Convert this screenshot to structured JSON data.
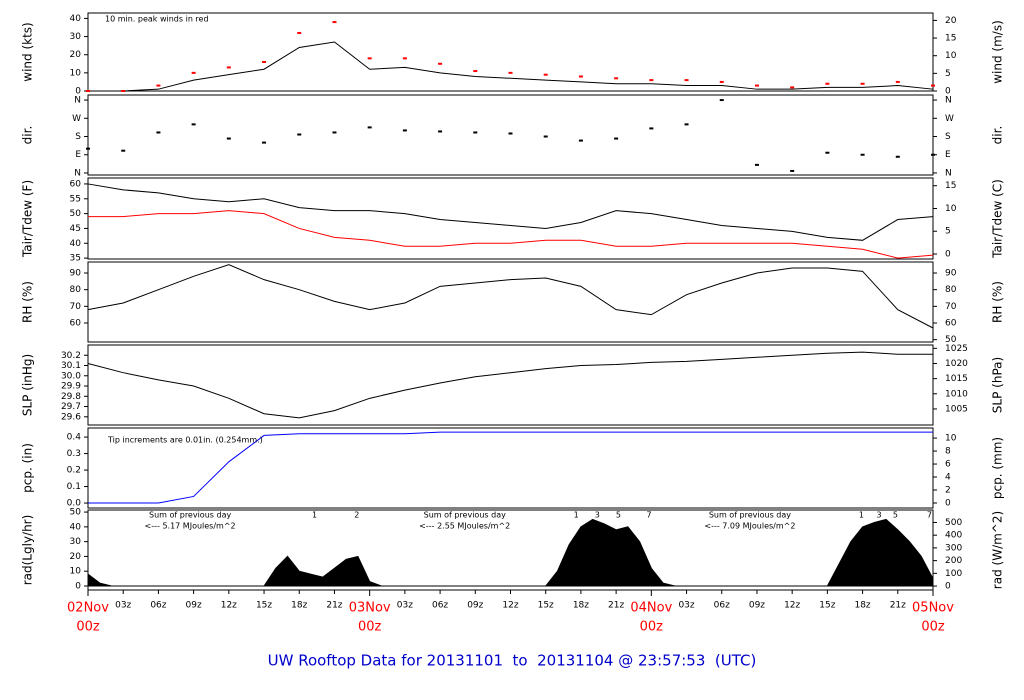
{
  "title": "UW Rooftop Data for 20131101  to  20131104 @ 23:57:53  (UTC)",
  "chart_data": [
    {
      "type": "line",
      "ylabel": "wind (kts)",
      "y2label": "wind (m/s)",
      "annotation": "10 min. peak winds in red",
      "xlim": [
        0,
        72
      ],
      "ylim": [
        0,
        43
      ],
      "yticks": [
        0,
        10,
        20,
        30,
        40
      ],
      "y2lim": [
        0,
        22.1
      ],
      "y2ticks": [
        0,
        5,
        10,
        15,
        20
      ],
      "x": [
        0,
        3,
        6,
        9,
        12,
        15,
        18,
        21,
        24,
        27,
        30,
        33,
        36,
        39,
        42,
        45,
        48,
        51,
        54,
        57,
        60,
        63,
        66,
        69,
        72
      ],
      "series": [
        {
          "color": "#000000",
          "style": "line",
          "values": [
            0,
            0,
            1,
            6,
            9,
            12,
            24,
            27,
            12,
            13,
            10,
            8,
            7,
            6,
            5,
            4,
            4,
            3,
            3,
            1,
            1,
            2,
            2,
            3,
            1
          ]
        },
        {
          "color": "#ff0000",
          "style": "points",
          "values": [
            0,
            0,
            3,
            10,
            13,
            16,
            32,
            38,
            18,
            18,
            15,
            11,
            10,
            9,
            8,
            7,
            6,
            6,
            5,
            3,
            2,
            4,
            4,
            5,
            3
          ]
        }
      ]
    },
    {
      "type": "scatter",
      "ylabel": "dir.",
      "y2label": "dir.",
      "xlim": [
        0,
        72
      ],
      "ylim": [
        -10,
        385
      ],
      "yticks": [
        {
          "value": 0,
          "label": "N"
        },
        {
          "value": 90,
          "label": "E"
        },
        {
          "value": 180,
          "label": "S"
        },
        {
          "value": 270,
          "label": "W"
        },
        {
          "value": 360,
          "label": "N"
        }
      ],
      "y2lim": [
        -10,
        385
      ],
      "y2ticks": [
        {
          "value": 0,
          "label": "N"
        },
        {
          "value": 90,
          "label": "E"
        },
        {
          "value": 180,
          "label": "S"
        },
        {
          "value": 270,
          "label": "W"
        },
        {
          "value": 360,
          "label": "N"
        }
      ],
      "x": [
        0,
        3,
        6,
        9,
        12,
        15,
        18,
        21,
        24,
        27,
        30,
        33,
        36,
        39,
        42,
        45,
        48,
        51,
        54,
        57,
        60,
        63,
        66,
        69,
        72
      ],
      "series": [
        {
          "color": "#000000",
          "style": "points",
          "values": [
            120,
            110,
            200,
            240,
            170,
            150,
            190,
            200,
            225,
            210,
            205,
            200,
            195,
            180,
            160,
            170,
            220,
            240,
            360,
            40,
            10,
            100,
            90,
            80,
            90
          ]
        }
      ]
    },
    {
      "type": "line",
      "ylabel": "Tair/Tdew (F)",
      "y2label": "Tair/Tdew (C)",
      "xlim": [
        0,
        72
      ],
      "ylim": [
        34.7,
        62
      ],
      "yticks": [
        35,
        40,
        45,
        50,
        55,
        60
      ],
      "y2lim": [
        -1.1,
        16.7
      ],
      "y2ticks": [
        0,
        5,
        10,
        15
      ],
      "x": [
        0,
        3,
        6,
        9,
        12,
        15,
        18,
        21,
        24,
        27,
        30,
        33,
        36,
        39,
        42,
        45,
        48,
        51,
        54,
        57,
        60,
        63,
        66,
        69,
        72
      ],
      "series": [
        {
          "color": "#000000",
          "style": "line",
          "values": [
            60,
            58,
            57,
            55,
            54,
            55,
            52,
            51,
            51,
            50,
            48,
            47,
            46,
            45,
            47,
            51,
            50,
            48,
            46,
            45,
            44,
            42,
            41,
            48,
            49
          ]
        },
        {
          "color": "#ff0000",
          "style": "line",
          "values": [
            49,
            49,
            50,
            50,
            51,
            50,
            45,
            42,
            41,
            39,
            39,
            40,
            40,
            41,
            41,
            39,
            39,
            40,
            40,
            40,
            40,
            39,
            38,
            35,
            36
          ]
        }
      ]
    },
    {
      "type": "line",
      "ylabel": "RH (%)",
      "y2label": "RH (%)",
      "xlim": [
        0,
        72
      ],
      "ylim": [
        48.6,
        96.6
      ],
      "yticks": [
        60,
        70,
        80,
        90
      ],
      "y2lim": [
        48.6,
        96.6
      ],
      "y2ticks": [
        50,
        60,
        70,
        80,
        90
      ],
      "x": [
        0,
        3,
        6,
        9,
        12,
        15,
        18,
        21,
        24,
        27,
        30,
        33,
        36,
        39,
        42,
        45,
        48,
        51,
        54,
        57,
        60,
        63,
        66,
        69,
        72
      ],
      "series": [
        {
          "color": "#000000",
          "style": "line",
          "values": [
            68,
            72,
            80,
            88,
            95,
            86,
            80,
            73,
            68,
            72,
            82,
            84,
            86,
            87,
            82,
            68,
            65,
            77,
            84,
            90,
            93,
            93,
            91,
            68,
            57
          ]
        }
      ]
    },
    {
      "type": "line",
      "ylabel": "SLP (inHg)",
      "y2label": "SLP (hPa)",
      "xlim": [
        0,
        72
      ],
      "ylim": [
        29.52,
        30.3
      ],
      "yticks": [
        29.6,
        29.7,
        29.8,
        29.9,
        {
          "value": 30,
          "label": "30.0"
        },
        30.1,
        30.2
      ],
      "y2lim": [
        999.7,
        1026.1
      ],
      "y2ticks": [
        1005,
        1010,
        1015,
        1020,
        1025
      ],
      "x": [
        0,
        3,
        6,
        9,
        12,
        15,
        18,
        21,
        24,
        27,
        30,
        33,
        36,
        39,
        42,
        45,
        48,
        51,
        54,
        57,
        60,
        63,
        66,
        69,
        72
      ],
      "series": [
        {
          "color": "#000000",
          "style": "line",
          "values": [
            30.12,
            30.03,
            29.96,
            29.9,
            29.78,
            29.63,
            29.59,
            29.66,
            29.78,
            29.86,
            29.93,
            29.99,
            30.03,
            30.07,
            30.1,
            30.11,
            30.13,
            30.14,
            30.16,
            30.18,
            30.2,
            30.22,
            30.23,
            30.21,
            30.21
          ]
        }
      ]
    },
    {
      "type": "line",
      "ylabel": "pcp. (in)",
      "y2label": "pcp. (mm)",
      "annotation": "Tip increments are 0.01in. (0.254mm.)",
      "xlim": [
        0,
        72
      ],
      "ylim": [
        -0.03,
        0.455
      ],
      "yticks": [
        {
          "value": 0,
          "label": "0.0"
        },
        0.1,
        0.2,
        0.3,
        0.4
      ],
      "y2lim": [
        -0.77,
        11.55
      ],
      "y2ticks": [
        0,
        2,
        4,
        6,
        8,
        10
      ],
      "x": [
        0,
        3,
        6,
        9,
        12,
        15,
        18,
        21,
        24,
        27,
        30,
        33,
        36,
        39,
        42,
        45,
        48,
        51,
        54,
        57,
        60,
        63,
        66,
        69,
        72
      ],
      "series": [
        {
          "color": "#0000ff",
          "style": "line",
          "values": [
            0,
            0,
            0,
            0.04,
            0.25,
            0.41,
            0.42,
            0.42,
            0.42,
            0.42,
            0.43,
            0.43,
            0.43,
            0.43,
            0.43,
            0.43,
            0.43,
            0.43,
            0.43,
            0.43,
            0.43,
            0.43,
            0.43,
            0.43,
            0.43
          ]
        }
      ]
    },
    {
      "type": "area",
      "ylabel": "rad(Lgly/hr)",
      "y2label": "rad (W/m^2)",
      "xlim": [
        0,
        72
      ],
      "ylim": [
        -2.7,
        51.4
      ],
      "yticks": [
        0,
        10,
        20,
        30,
        40,
        50
      ],
      "y2lim": [
        -31,
        598
      ],
      "y2ticks": [
        0,
        100,
        200,
        300,
        400,
        500
      ],
      "x": [
        0,
        1,
        2,
        3,
        4,
        5,
        6,
        7,
        8,
        9,
        10,
        11,
        12,
        13,
        14,
        15,
        16,
        17,
        18,
        19,
        20,
        21,
        22,
        23,
        24,
        25,
        26,
        27,
        28,
        29,
        30,
        31,
        32,
        33,
        34,
        35,
        36,
        37,
        38,
        39,
        40,
        41,
        42,
        43,
        44,
        45,
        46,
        47,
        48,
        49,
        50,
        51,
        52,
        53,
        54,
        55,
        56,
        57,
        58,
        59,
        60,
        61,
        62,
        63,
        64,
        65,
        66,
        67,
        68,
        69,
        70,
        71,
        72
      ],
      "series": [
        {
          "color": "#000000",
          "values": [
            8,
            2,
            0,
            0,
            0,
            0,
            0,
            0,
            0,
            0,
            0,
            0,
            0,
            0,
            0,
            0,
            12,
            20,
            10,
            8,
            6,
            12,
            18,
            20,
            3,
            0,
            0,
            0,
            0,
            0,
            0,
            0,
            0,
            0,
            0,
            0,
            0,
            0,
            0,
            0,
            10,
            28,
            40,
            45,
            42,
            38,
            40,
            30,
            12,
            2,
            0,
            0,
            0,
            0,
            0,
            0,
            0,
            0,
            0,
            0,
            0,
            0,
            0,
            0,
            15,
            30,
            40,
            43,
            45,
            38,
            30,
            20,
            5
          ]
        }
      ],
      "hour_marks": [
        {
          "value": 19.3,
          "label": "1"
        },
        {
          "value": 22.9,
          "label": "2"
        },
        {
          "value": 41.6,
          "label": "1"
        },
        {
          "value": 43.4,
          "label": "3"
        },
        {
          "value": 45.2,
          "label": "5"
        },
        {
          "value": 47.8,
          "label": "7"
        },
        {
          "value": 65.9,
          "label": "1"
        },
        {
          "value": 67.4,
          "label": "3"
        },
        {
          "value": 68.8,
          "label": "5"
        },
        {
          "value": 71.7,
          "label": "7"
        }
      ],
      "sums": [
        {
          "value": 8.7,
          "label": "Sum of previous day",
          "total": "<--- 5.17 MJoules/m^2"
        },
        {
          "value": 32.1,
          "label": "Sum of previous day",
          "total": "<--- 2.55 MJoules/m^2"
        },
        {
          "value": 56.4,
          "label": "Sum of previous day",
          "total": "<--- 7.09 MJoules/m^2"
        }
      ],
      "xticks": [
        {
          "value": 3,
          "label": "03z"
        },
        {
          "value": 6,
          "label": "06z"
        },
        {
          "value": 9,
          "label": "09z"
        },
        {
          "value": 12,
          "label": "12z"
        },
        {
          "value": 15,
          "label": "15z"
        },
        {
          "value": 18,
          "label": "18z"
        },
        {
          "value": 21,
          "label": "21z"
        },
        {
          "value": 27,
          "label": "03z"
        },
        {
          "value": 30,
          "label": "06z"
        },
        {
          "value": 33,
          "label": "09z"
        },
        {
          "value": 36,
          "label": "12z"
        },
        {
          "value": 39,
          "label": "15z"
        },
        {
          "value": 42,
          "label": "18z"
        },
        {
          "value": 45,
          "label": "21z"
        },
        {
          "value": 51,
          "label": "03z"
        },
        {
          "value": 54,
          "label": "06z"
        },
        {
          "value": 57,
          "label": "09z"
        },
        {
          "value": 60,
          "label": "12z"
        },
        {
          "value": 63,
          "label": "15z"
        },
        {
          "value": 66,
          "label": "18z"
        },
        {
          "value": 69,
          "label": "21z"
        }
      ],
      "day_ticks": [
        {
          "value": 0,
          "label": "02Nov",
          "sub": "00z"
        },
        {
          "value": 24,
          "label": "03Nov",
          "sub": "00z"
        },
        {
          "value": 48,
          "label": "04Nov",
          "sub": "00z"
        },
        {
          "value": 72,
          "label": "05Nov",
          "sub": "00z"
        }
      ]
    }
  ]
}
